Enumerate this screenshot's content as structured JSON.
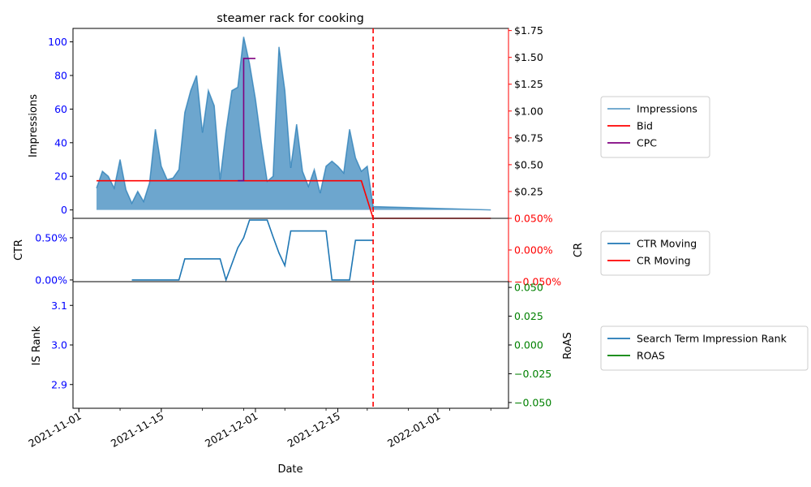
{
  "title": "steamer rack for cooking",
  "colors": {
    "impressions": "#1f77b4",
    "bid": "#ff0000",
    "cpc": "#800080",
    "ctr": "#1f77b4",
    "cr": "#ff0000",
    "is_rank": "#1f77b4",
    "roas": "#008000",
    "left_tick": "#0000ff",
    "right_tick_top": "#000000",
    "right_tick_mid": "#ff0000",
    "right_tick_bottom": "#008000",
    "vline": "#ff0000"
  },
  "chart_data": [
    {
      "type": "area",
      "panel": "top",
      "title": "steamer rack for cooking",
      "ylabel": "Impressions",
      "ylim": [
        -5,
        108
      ],
      "yticks": [
        0,
        20,
        40,
        60,
        80,
        100
      ],
      "ytick_labels": [
        "0",
        "20",
        "40",
        "60",
        "80",
        "100"
      ],
      "xlim": [
        "2021-10-31",
        "2022-01-13"
      ],
      "series": [
        {
          "name": "Impressions",
          "x": [
            "2021-11-04",
            "2021-11-05",
            "2021-11-06",
            "2021-11-07",
            "2021-11-08",
            "2021-11-09",
            "2021-11-10",
            "2021-11-11",
            "2021-11-12",
            "2021-11-13",
            "2021-11-14",
            "2021-11-15",
            "2021-11-16",
            "2021-11-17",
            "2021-11-18",
            "2021-11-19",
            "2021-11-20",
            "2021-11-21",
            "2021-11-22",
            "2021-11-23",
            "2021-11-24",
            "2021-11-25",
            "2021-11-26",
            "2021-11-27",
            "2021-11-28",
            "2021-11-29",
            "2021-11-30",
            "2021-12-01",
            "2021-12-02",
            "2021-12-03",
            "2021-12-04",
            "2021-12-05",
            "2021-12-06",
            "2021-12-07",
            "2021-12-08",
            "2021-12-09",
            "2021-12-10",
            "2021-12-11",
            "2021-12-12",
            "2021-12-13",
            "2021-12-14",
            "2021-12-15",
            "2021-12-16",
            "2021-12-17",
            "2021-12-18",
            "2021-12-19",
            "2021-12-20",
            "2021-12-21",
            "2022-01-10"
          ],
          "values": [
            13,
            23,
            20,
            13,
            30,
            12,
            4,
            11,
            5,
            16,
            48,
            26,
            18,
            19,
            24,
            58,
            71,
            80,
            46,
            71,
            62,
            18,
            47,
            71,
            73,
            103,
            87,
            66,
            40,
            17,
            20,
            97,
            71,
            25,
            51,
            23,
            14,
            24,
            10,
            26,
            29,
            26,
            22,
            48,
            31,
            23,
            26,
            2,
            0
          ]
        }
      ],
      "right_axis": {
        "ylim": [
          0,
          1.77
        ],
        "yticks": [
          0.25,
          0.5,
          0.75,
          1.0,
          1.25,
          1.5,
          1.75
        ],
        "ytick_labels": [
          "$0.25",
          "$0.50",
          "$0.75",
          "$1.00",
          "$1.25",
          "$1.50",
          "$1.75"
        ],
        "series": [
          {
            "name": "Bid",
            "x": [
              "2021-11-04",
              "2021-12-19",
              "2021-12-21",
              "2022-01-10"
            ],
            "values": [
              0.35,
              0.35,
              0.0,
              0.0
            ]
          },
          {
            "name": "CPC",
            "x": [
              "2021-11-28",
              "2021-11-29",
              "2021-11-29",
              "2021-12-01"
            ],
            "values": [
              0.35,
              0.35,
              1.49,
              1.49
            ]
          }
        ]
      },
      "legend": [
        "Impressions",
        "Bid",
        "CPC"
      ]
    },
    {
      "type": "line",
      "panel": "middle",
      "ylabel": "CTR",
      "ylim": [
        -0.02,
        0.73
      ],
      "yticks": [
        0.0,
        0.5
      ],
      "ytick_labels": [
        "0.00%",
        "0.50%"
      ],
      "series": [
        {
          "name": "CTR Moving",
          "x": [
            "2021-11-10",
            "2021-11-18",
            "2021-11-19",
            "2021-11-25",
            "2021-11-26",
            "2021-11-28",
            "2021-11-29",
            "2021-11-30",
            "2021-12-01",
            "2021-12-02",
            "2021-12-03",
            "2021-12-04",
            "2021-12-05",
            "2021-12-06",
            "2021-12-07",
            "2021-12-08",
            "2021-12-09",
            "2021-12-10",
            "2021-12-11",
            "2021-12-12",
            "2021-12-13",
            "2021-12-14",
            "2021-12-15",
            "2021-12-16",
            "2021-12-17",
            "2021-12-18",
            "2021-12-19",
            "2021-12-20",
            "2021-12-21"
          ],
          "values": [
            0.0,
            0.0,
            0.25,
            0.25,
            0.0,
            0.38,
            0.5,
            0.71,
            0.71,
            0.71,
            0.71,
            0.51,
            0.32,
            0.17,
            0.58,
            0.58,
            0.58,
            0.58,
            0.58,
            0.58,
            0.58,
            0.0,
            0.0,
            0.0,
            0.0,
            0.47,
            0.47,
            0.47,
            0.47
          ]
        }
      ],
      "right_axis": {
        "ylabel": "CR",
        "ylim": [
          -0.05,
          0.05
        ],
        "yticks": [
          -0.05,
          0.0,
          0.05
        ],
        "ytick_labels": [
          "−0.050%",
          "0.000%",
          "0.050%"
        ],
        "series": [
          {
            "name": "CR Moving",
            "x": [],
            "values": []
          }
        ]
      },
      "legend": [
        "CTR Moving",
        "CR Moving"
      ]
    },
    {
      "type": "line",
      "panel": "bottom",
      "ylabel": "IS Rank",
      "xlabel": "Date",
      "ylim": [
        2.84,
        3.16
      ],
      "yticks": [
        2.9,
        3.0,
        3.1
      ],
      "ytick_labels": [
        "2.9",
        "3.0",
        "3.1"
      ],
      "xticks": [
        "2021-11-01",
        "2021-11-15",
        "2021-12-01",
        "2021-12-15",
        "2022-01-01"
      ],
      "xtick_labels": [
        "2021-11-01",
        "2021-11-15",
        "2021-12-01",
        "2021-12-15",
        "2022-01-01"
      ],
      "series": [
        {
          "name": "Search Term Impression Rank",
          "x": [],
          "values": []
        }
      ],
      "right_axis": {
        "ylabel": "RoAS",
        "ylim": [
          -0.055,
          0.055
        ],
        "yticks": [
          -0.05,
          -0.025,
          0.0,
          0.025,
          0.05
        ],
        "ytick_labels": [
          "−0.050",
          "−0.025",
          "0.000",
          "0.025",
          "0.050"
        ],
        "series": [
          {
            "name": "ROAS",
            "x": [],
            "values": []
          }
        ]
      },
      "legend": [
        "Search Term Impression Rank",
        "ROAS"
      ]
    }
  ],
  "vline_date": "2021-12-21"
}
